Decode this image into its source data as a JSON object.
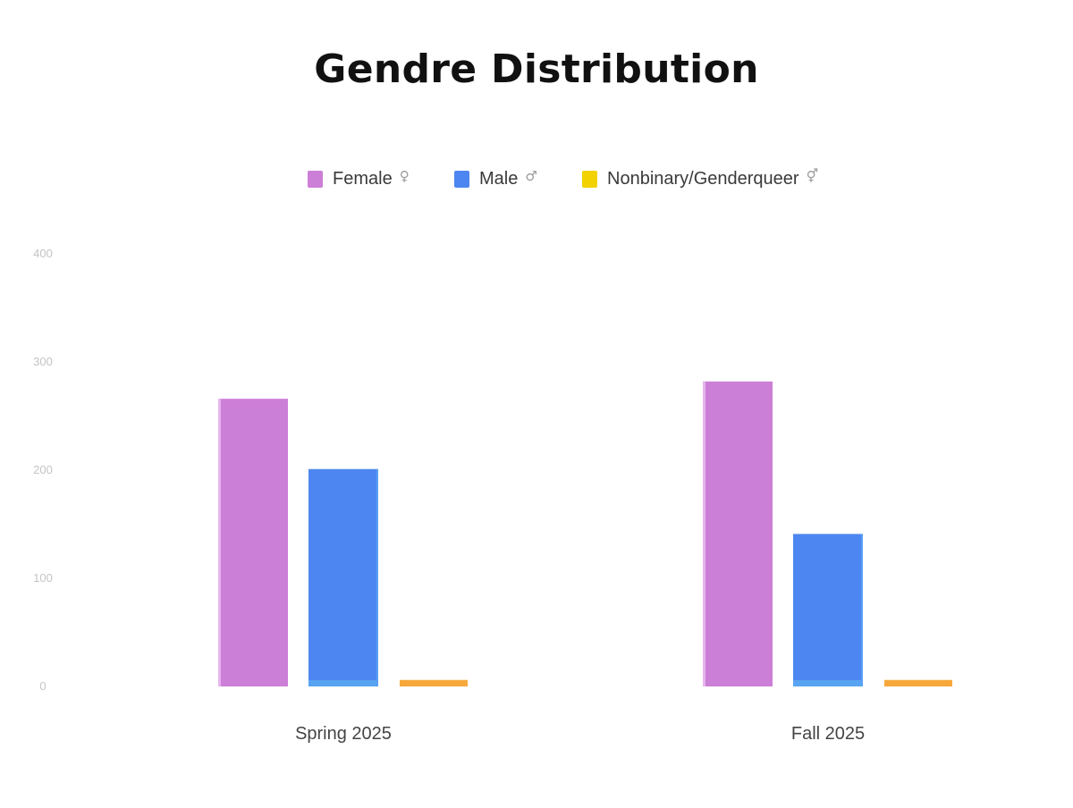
{
  "chart_data": {
    "type": "bar",
    "title": "Gendre Distribution",
    "categories": [
      "Spring 2025",
      "Fall 2025"
    ],
    "series": [
      {
        "name": "Female",
        "symbol": "♀",
        "color": "#cc7fd6",
        "values": [
          266,
          282
        ]
      },
      {
        "name": "Male",
        "symbol": "♂",
        "color": "#4d86f0",
        "values": [
          201,
          141
        ]
      },
      {
        "name": "Nonbinary/Genderqueer",
        "symbol": "⚥",
        "color": "#f7a83a",
        "legend_color": "#f2d200",
        "values": [
          6,
          6
        ]
      }
    ],
    "yticks": [
      0,
      100,
      200,
      300,
      400
    ],
    "ylim": [
      0,
      400
    ],
    "xlabel": "",
    "ylabel": "",
    "grid": false,
    "legend_position": "top-center"
  }
}
